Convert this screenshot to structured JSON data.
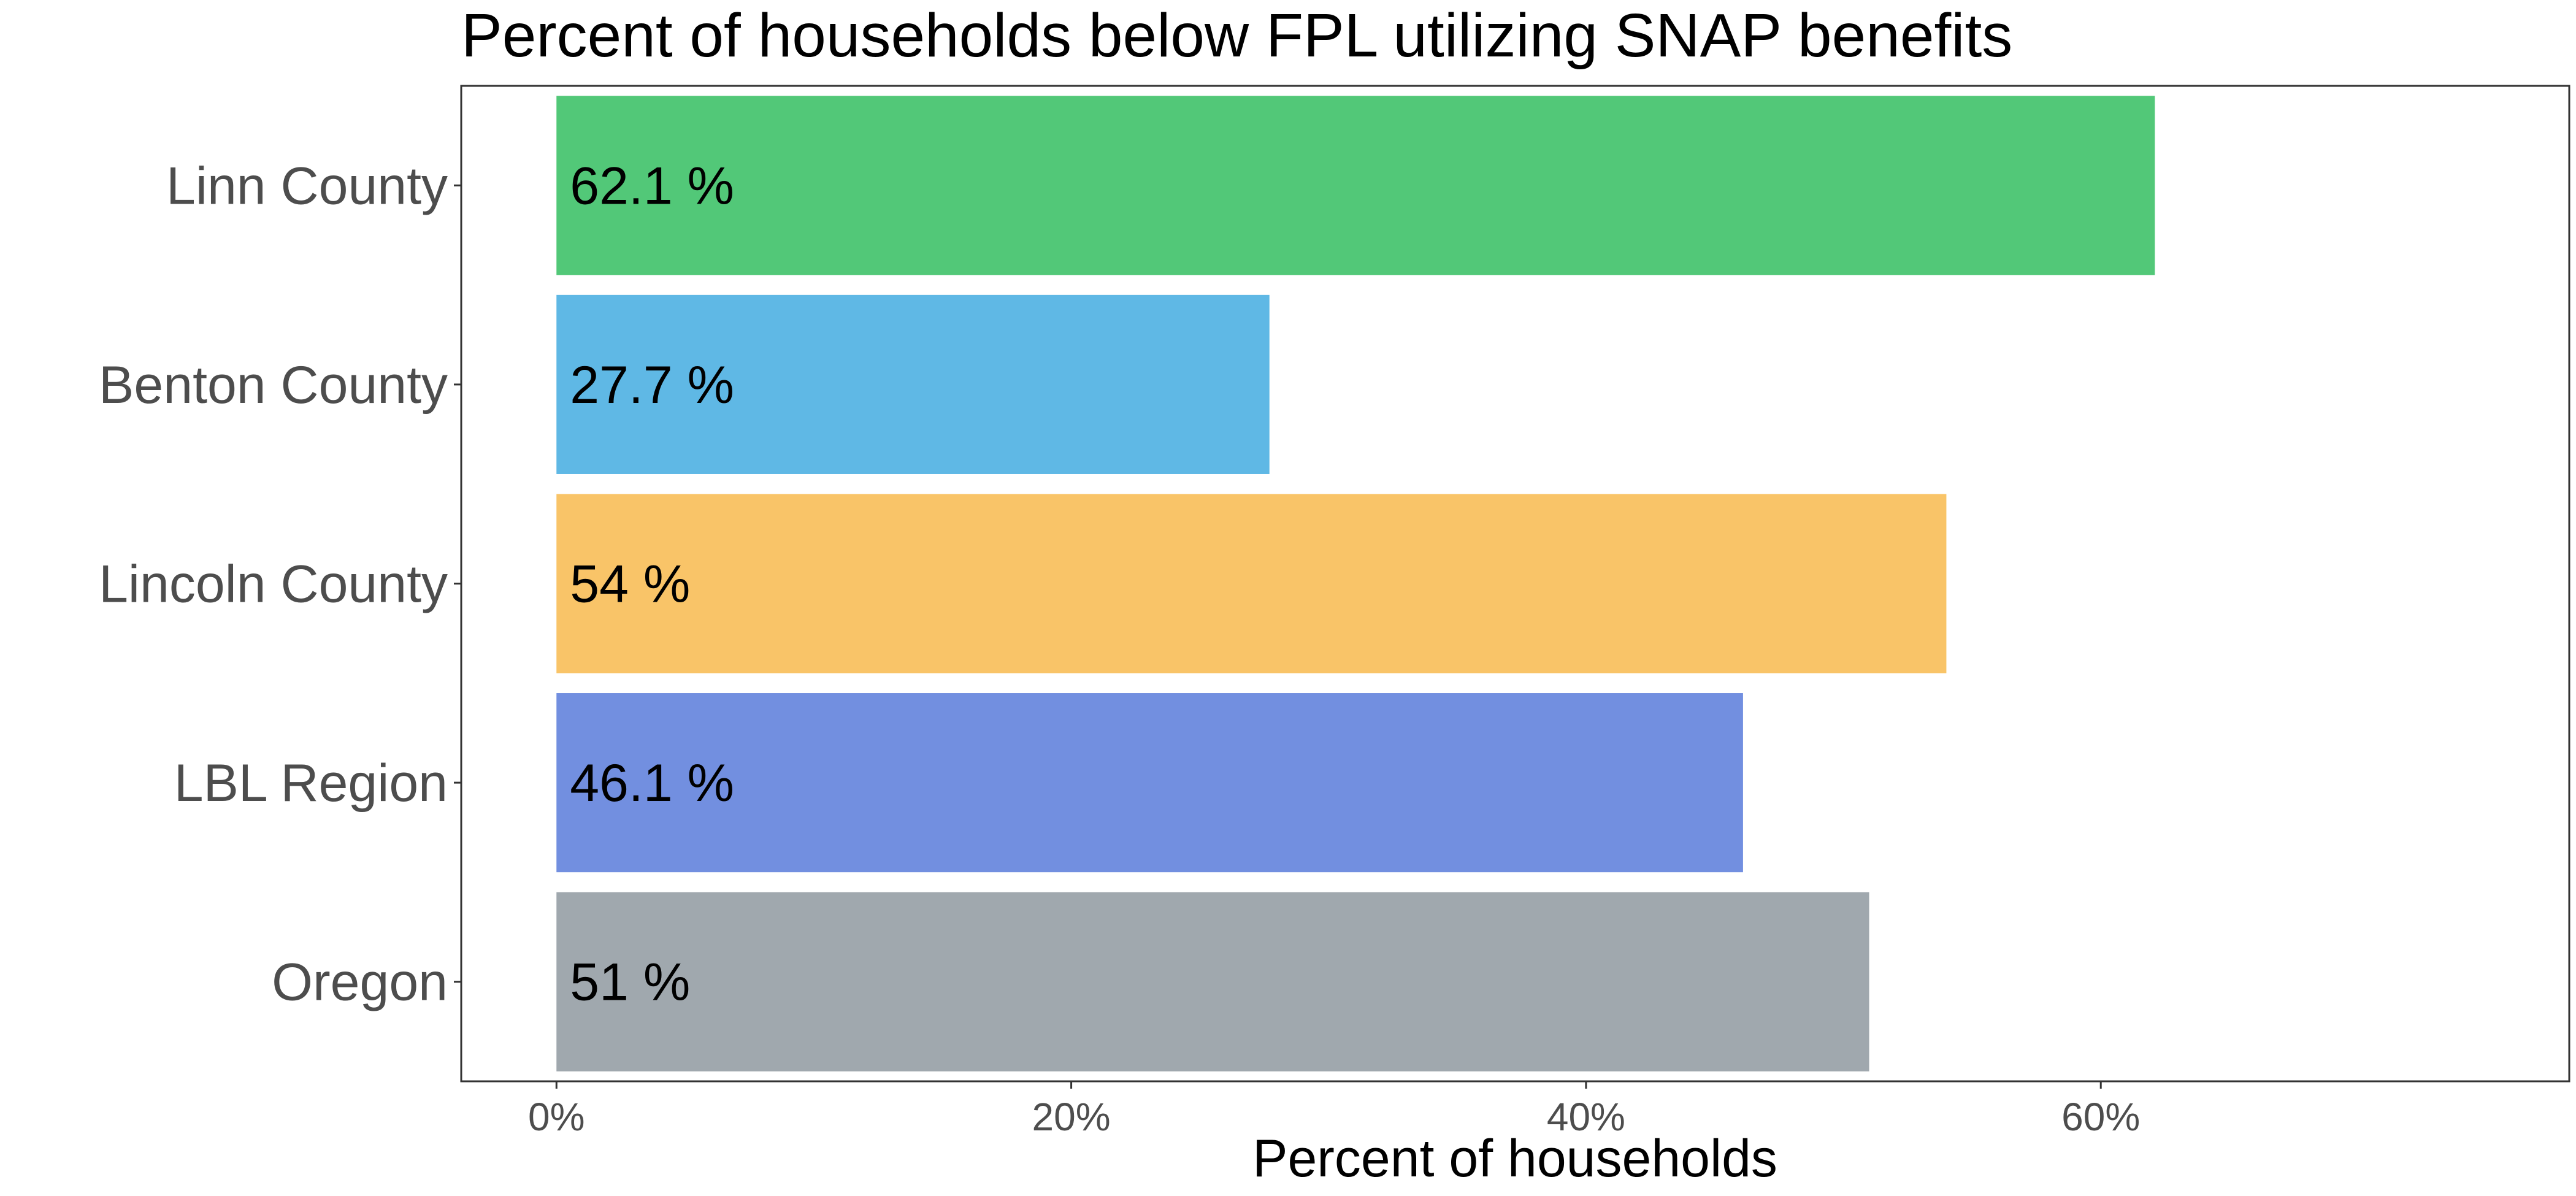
{
  "chart_data": {
    "type": "bar",
    "orientation": "horizontal",
    "title": "Percent of households below FPL utilizing SNAP benefits",
    "xlabel": "Percent of households",
    "ylabel": "",
    "categories": [
      "Linn County",
      "Benton County",
      "Lincoln County",
      "LBL Region",
      "Oregon"
    ],
    "values": [
      62.1,
      27.7,
      54,
      46.1,
      51
    ],
    "value_labels": [
      "62.1 %",
      "27.7 %",
      "54 %",
      "46.1 %",
      "51 %"
    ],
    "colors": [
      "#52c878",
      "#5fb8e5",
      "#f9c468",
      "#728fe0",
      "#a0a8ae"
    ],
    "xlim": [
      -3.7,
      78.2
    ],
    "x_ticks": [
      0,
      20,
      40,
      60
    ],
    "x_tick_labels": [
      "0%",
      "20%",
      "40%",
      "60%"
    ],
    "grid": false,
    "legend": "none"
  }
}
